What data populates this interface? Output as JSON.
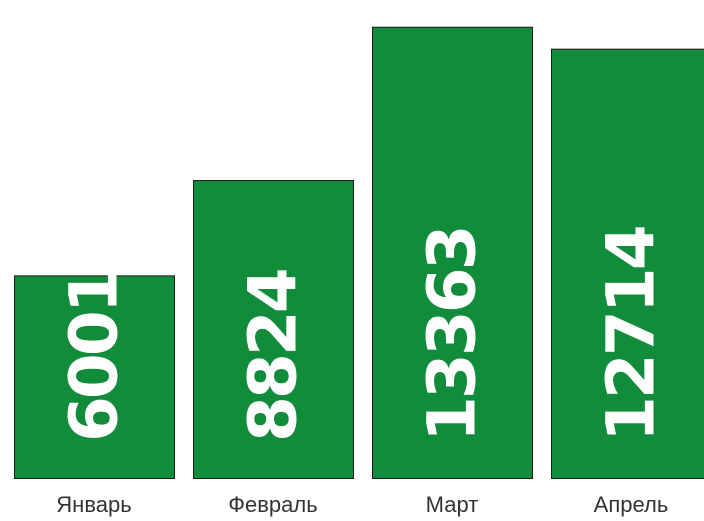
{
  "chart_data": {
    "type": "bar",
    "categories": [
      "Январь",
      "Февраль",
      "Март",
      "Апрель"
    ],
    "values": [
      6001,
      8824,
      13363,
      12714
    ],
    "value_labels": [
      "6001",
      "8824",
      "13363",
      "12714"
    ],
    "ylim": [
      0,
      13800
    ],
    "grid": false,
    "legend": "none",
    "bar_color": "#118c3a",
    "bar_border_color": "#1a1a1a",
    "value_label_color": "#ffffff",
    "category_label_color": "#333333"
  }
}
